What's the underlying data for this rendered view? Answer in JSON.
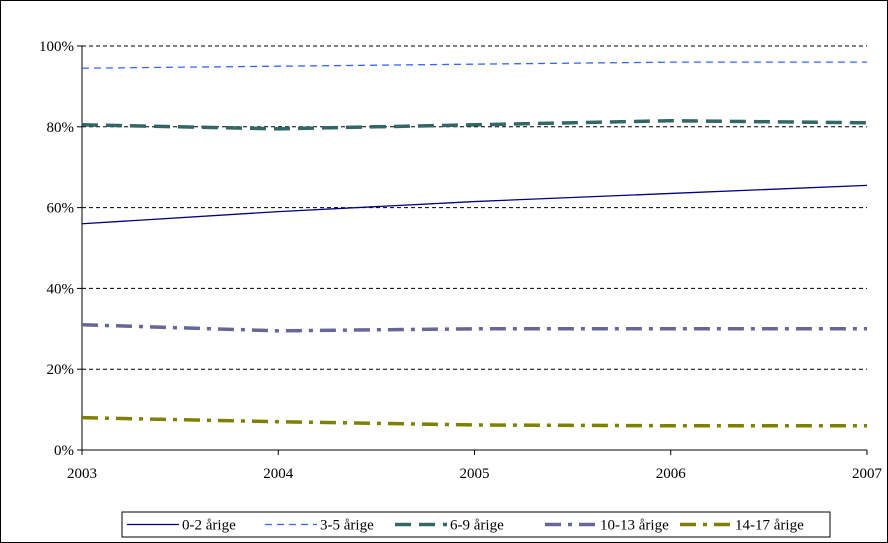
{
  "chart_data": {
    "type": "line",
    "title": "",
    "xlabel": "",
    "ylabel": "",
    "x": [
      2003,
      2004,
      2005,
      2006,
      2007
    ],
    "x_tick_labels": [
      "2003",
      "2004",
      "2005",
      "2006",
      "2007"
    ],
    "y_tick_labels": [
      "0%",
      "20%",
      "40%",
      "60%",
      "80%",
      "100%"
    ],
    "ylim": [
      0,
      100
    ],
    "grid": "horizontal dashed",
    "legend_position": "bottom",
    "series": [
      {
        "name": "0-2 årige",
        "color": "#000080",
        "dash": "solid",
        "width": 1.3,
        "values": [
          56,
          59,
          61.5,
          63.5,
          65.5
        ]
      },
      {
        "name": "3-5 årige",
        "color": "#3366ff",
        "dash": "dash",
        "width": 1.3,
        "values": [
          94.5,
          95,
          95.5,
          96,
          96
        ]
      },
      {
        "name": "6-9 årige",
        "color": "#336666",
        "dash": "longdash",
        "width": 3.5,
        "values": [
          80.5,
          79.5,
          80.5,
          81.5,
          81
        ]
      },
      {
        "name": "10-13 årige",
        "color": "#666699",
        "dash": "dashdot",
        "width": 3.5,
        "values": [
          31,
          29.5,
          30,
          30,
          30
        ]
      },
      {
        "name": "14-17 årige",
        "color": "#808000",
        "dash": "dashdot",
        "width": 3.5,
        "values": [
          8,
          7,
          6.2,
          6,
          6
        ]
      }
    ]
  }
}
